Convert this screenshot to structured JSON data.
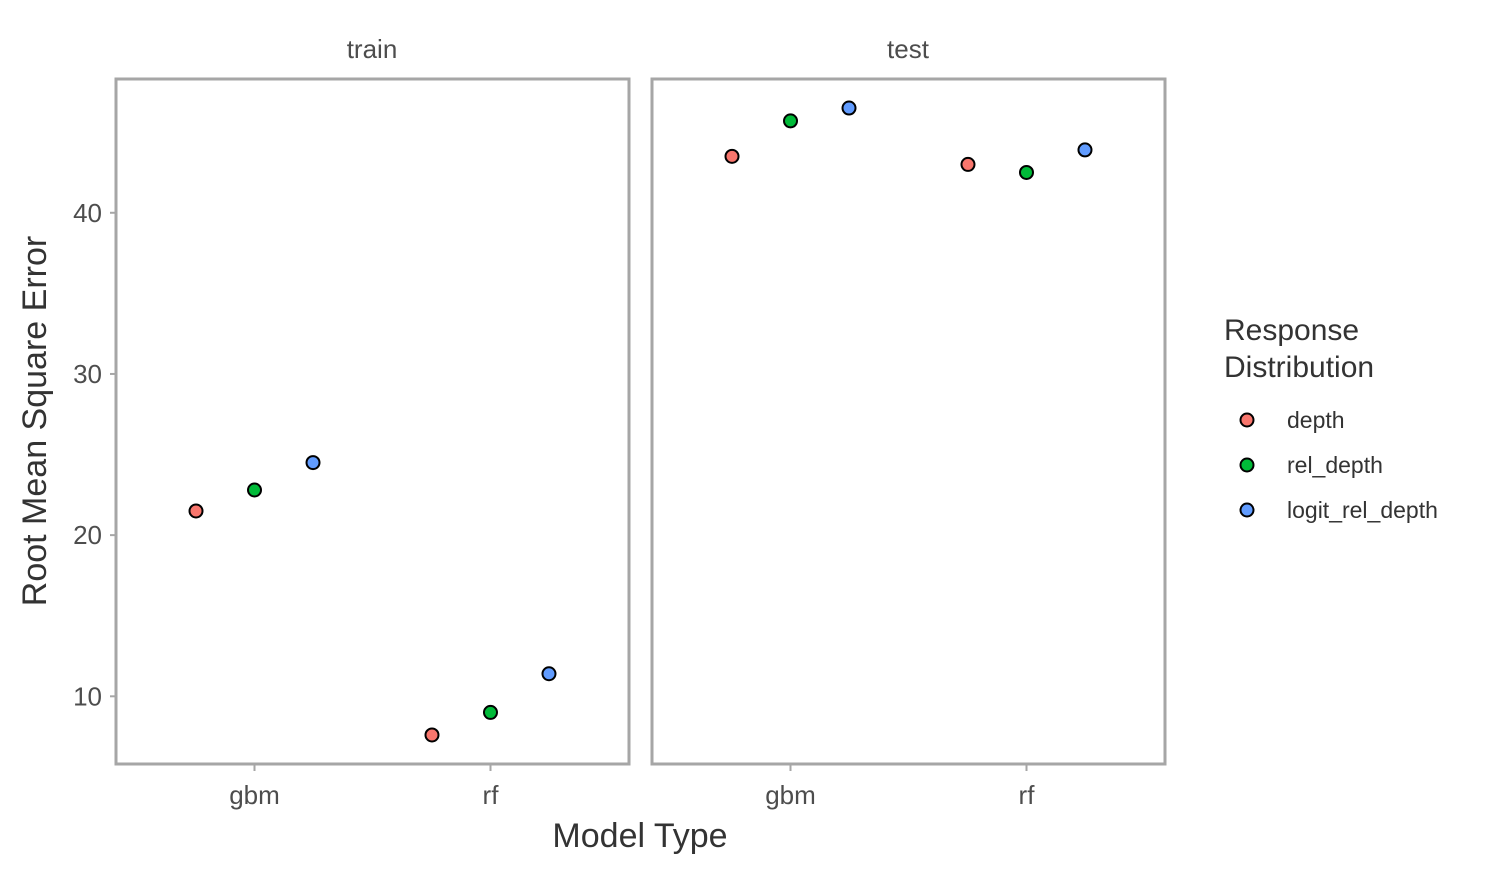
{
  "chart_data": {
    "type": "scatter",
    "xlabel": "Model Type",
    "ylabel": "Root Mean Square Error",
    "categories": [
      "gbm",
      "rf"
    ],
    "panels": [
      "train",
      "test"
    ],
    "yticks": [
      10,
      20,
      30,
      40
    ],
    "ylim": [
      5.8,
      48.3
    ],
    "grid": false,
    "legend": {
      "title_lines": [
        "Response",
        "Distribution"
      ],
      "placement": "right"
    },
    "series": [
      {
        "name": "depth",
        "color": "#F8766D",
        "values": {
          "train": [
            21.5,
            7.6
          ],
          "test": [
            43.5,
            43.0
          ]
        }
      },
      {
        "name": "rel_depth",
        "color": "#00BA38",
        "values": {
          "train": [
            22.8,
            9.0
          ],
          "test": [
            45.7,
            42.5
          ]
        }
      },
      {
        "name": "logit_rel_depth",
        "color": "#619CFF",
        "values": {
          "train": [
            24.5,
            11.4
          ],
          "test": [
            46.5,
            43.9
          ]
        }
      }
    ]
  }
}
